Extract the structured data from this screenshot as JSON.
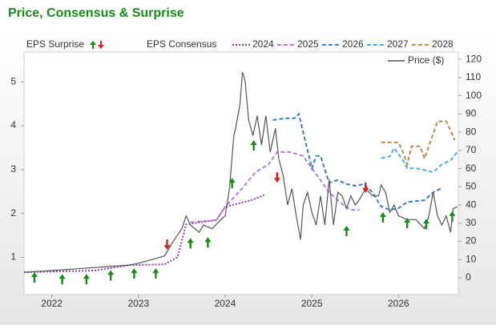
{
  "chart_data": {
    "type": "line",
    "title": "Price, Consensus & Surprise",
    "xlim": [
      2021.68,
      2026.69
    ],
    "xticks": [
      2022,
      2023,
      2024,
      2025,
      2026
    ],
    "ylim": [
      0.15,
      5.68
    ],
    "yticks": [
      1,
      2,
      3,
      4,
      5
    ],
    "y2lim": [
      -9.2,
      124
    ],
    "y2ticks": [
      0,
      10,
      20,
      30,
      40,
      50,
      60,
      70,
      80,
      90,
      100,
      110,
      120
    ],
    "consensus_label": "EPS Consensus",
    "series": [
      {
        "name": "2024",
        "color": "#8b3fa3",
        "style": "dotted",
        "x": [
          2021.68,
          2022.5,
          2022.9,
          2023.3,
          2023.45,
          2023.55,
          2023.9,
          2024.0,
          2024.1,
          2024.3,
          2024.45
        ],
        "values": [
          0.66,
          0.7,
          0.82,
          0.84,
          1.0,
          1.75,
          1.85,
          2.15,
          2.2,
          2.3,
          2.42
        ]
      },
      {
        "name": "2025",
        "color": "#b77fd0",
        "style": "dashed",
        "x": [
          2023.6,
          2023.9,
          2024.0,
          2024.2,
          2024.35,
          2024.5,
          2024.6,
          2024.75,
          2024.9,
          2025.0,
          2025.1,
          2025.2,
          2025.35,
          2025.45,
          2025.55
        ],
        "values": [
          1.8,
          1.85,
          2.15,
          2.58,
          2.94,
          3.12,
          3.4,
          3.4,
          3.31,
          3.03,
          2.76,
          2.48,
          2.21,
          2.08,
          2.08
        ]
      },
      {
        "name": "2026",
        "color": "#3c7ebf",
        "style": "dashed",
        "x": [
          2024.55,
          2024.7,
          2024.8,
          2024.85,
          2024.9,
          2025.0,
          2025.05,
          2025.1,
          2025.2,
          2025.3,
          2025.4,
          2025.5,
          2025.6,
          2025.7,
          2025.8,
          2025.9,
          2026.0,
          2026.1,
          2026.3,
          2026.4,
          2026.5
        ],
        "values": [
          4.13,
          4.17,
          4.17,
          4.27,
          3.85,
          3.03,
          3.31,
          3.31,
          2.7,
          2.76,
          2.67,
          2.63,
          2.67,
          2.48,
          2.16,
          2.08,
          2.12,
          2.26,
          2.3,
          2.48,
          2.58
        ]
      },
      {
        "name": "2027",
        "color": "#55aee0",
        "style": "dashed",
        "x": [
          2025.8,
          2025.9,
          2025.95,
          2026.0,
          2026.05,
          2026.1,
          2026.2,
          2026.3,
          2026.4,
          2026.5,
          2026.6,
          2026.68
        ],
        "values": [
          3.26,
          3.3,
          3.49,
          3.35,
          3.21,
          3.03,
          3.03,
          2.99,
          2.94,
          3.12,
          3.21,
          3.4
        ]
      },
      {
        "name": "2028",
        "color": "#b98b4a",
        "style": "dashed",
        "x": [
          2025.8,
          2025.9,
          2026.0,
          2026.05,
          2026.1,
          2026.15,
          2026.25,
          2026.3,
          2026.45,
          2026.55,
          2026.65
        ],
        "values": [
          3.62,
          3.62,
          3.62,
          3.4,
          3.12,
          3.53,
          3.53,
          3.25,
          4.1,
          4.1,
          3.67
        ]
      },
      {
        "name": "Price ($)",
        "color": "#555555",
        "style": "solid",
        "axis": "y2",
        "x": [
          2021.68,
          2022.0,
          2022.3,
          2022.6,
          2022.9,
          2023.0,
          2023.3,
          2023.4,
          2023.5,
          2023.55,
          2023.6,
          2023.7,
          2023.75,
          2023.85,
          2023.95,
          2024.0,
          2024.05,
          2024.1,
          2024.12,
          2024.17,
          2024.2,
          2024.23,
          2024.27,
          2024.32,
          2024.37,
          2024.42,
          2024.47,
          2024.52,
          2024.58,
          2024.62,
          2024.67,
          2024.72,
          2024.77,
          2024.82,
          2024.87,
          2024.9,
          2024.95,
          2025.0,
          2025.05,
          2025.1,
          2025.15,
          2025.2,
          2025.25,
          2025.3,
          2025.35,
          2025.4,
          2025.45,
          2025.5,
          2025.55,
          2025.62,
          2025.7,
          2025.77,
          2025.8,
          2025.85,
          2025.9,
          2025.95,
          2026.0,
          2026.1,
          2026.2,
          2026.3,
          2026.35,
          2026.4,
          2026.45,
          2026.5,
          2026.55,
          2026.6,
          2026.63,
          2026.68
        ],
        "values": [
          3,
          4,
          5,
          6,
          7,
          8,
          12,
          20,
          27,
          34,
          29,
          25,
          29,
          27,
          32,
          34,
          49,
          78,
          82,
          95,
          113,
          108,
          87,
          78,
          89,
          73,
          89,
          69,
          82,
          65,
          56,
          40,
          49,
          34,
          21,
          40,
          47,
          36,
          29,
          45,
          29,
          54,
          29,
          47,
          45,
          38,
          45,
          40,
          43,
          49,
          45,
          45,
          51,
          47,
          36,
          40,
          34,
          32,
          32,
          27,
          34,
          47,
          34,
          29,
          34,
          25,
          38,
          39
        ]
      }
    ],
    "surprise": {
      "label": "EPS Surprise",
      "up": {
        "color": "#1a8a1a",
        "x": [
          2021.8,
          2022.12,
          2022.4,
          2022.68,
          2022.95,
          2023.2,
          2023.6,
          2023.8,
          2024.08,
          2024.33,
          2025.4,
          2025.82,
          2026.1,
          2026.32,
          2026.62
        ],
        "values": [
          0.66,
          0.62,
          0.62,
          0.71,
          0.75,
          0.75,
          1.44,
          1.46,
          2.81,
          3.67,
          1.72,
          2.03,
          1.9,
          1.88,
          2.05
        ]
      },
      "down": {
        "color": "#d42020",
        "x": [
          2023.33,
          2024.6,
          2025.62
        ],
        "values": [
          1.17,
          2.7,
          2.47
        ]
      }
    }
  }
}
